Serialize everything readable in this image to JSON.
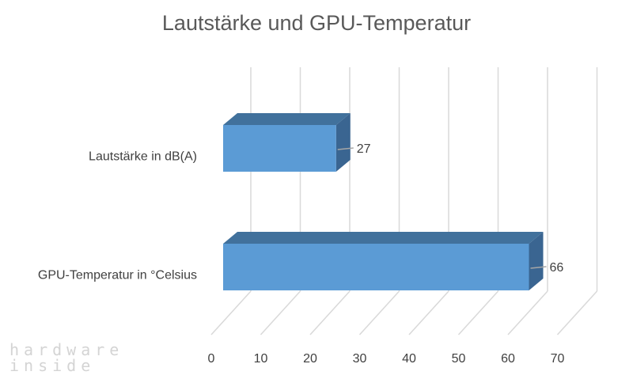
{
  "title": "Lautstärke und GPU-Temperatur",
  "watermark": [
    "hardware",
    "inside"
  ],
  "chart_data": {
    "type": "bar",
    "orientation": "horizontal",
    "style": "3d",
    "title": "Lautstärke und GPU-Temperatur",
    "categories": [
      "Lautstärke in dB(A)",
      "GPU-Temperatur in °Celsius"
    ],
    "values": [
      27,
      66
    ],
    "data_labels": [
      "27",
      "66"
    ],
    "xlim": [
      0,
      70
    ],
    "xticks": [
      0,
      10,
      20,
      30,
      40,
      50,
      60,
      70
    ],
    "grid": true,
    "legend": "none",
    "colors": {
      "bar_front": "#5b9bd5",
      "bar_top": "#41719c",
      "bar_side": "#3a6591",
      "grid": "#d9d9d9",
      "text": "#404040"
    }
  }
}
